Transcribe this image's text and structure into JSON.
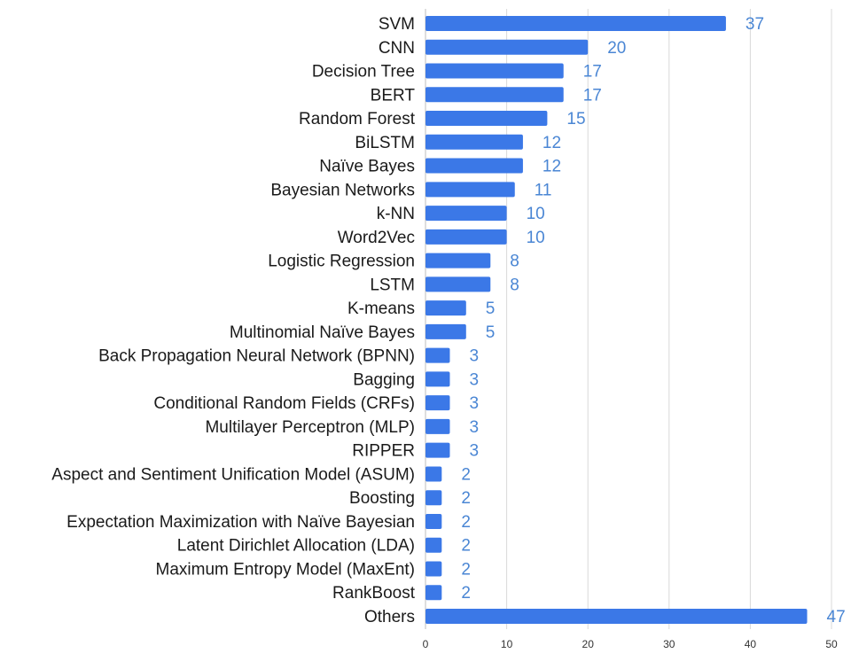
{
  "chart_data": {
    "type": "bar",
    "orientation": "horizontal",
    "categories": [
      "SVM",
      "CNN",
      "Decision Tree",
      "BERT",
      "Random Forest",
      "BiLSTM",
      "Naïve Bayes",
      "Bayesian Networks",
      "k-NN",
      "Word2Vec",
      "Logistic Regression",
      "LSTM",
      "K-means",
      "Multinomial Naïve Bayes",
      "Back Propagation Neural Network (BPNN)",
      "Bagging",
      "Conditional Random Fields (CRFs)",
      "Multilayer Perceptron (MLP)",
      "RIPPER",
      "Aspect and Sentiment Unification Model (ASUM)",
      "Boosting",
      "Expectation Maximization with Naïve Bayesian",
      "Latent Dirichlet Allocation (LDA)",
      "Maximum Entropy Model (MaxEnt)",
      "RankBoost",
      "Others"
    ],
    "values": [
      37,
      20,
      17,
      17,
      15,
      12,
      12,
      11,
      10,
      10,
      8,
      8,
      5,
      5,
      3,
      3,
      3,
      3,
      3,
      2,
      2,
      2,
      2,
      2,
      2,
      47
    ],
    "data_labels": [
      "37",
      "20",
      "17",
      "17",
      "15",
      "12",
      "12",
      "11",
      "10",
      "10",
      "8",
      "8",
      "5",
      "5",
      "3",
      "3",
      "3",
      "3",
      "3",
      "2",
      "2",
      "2",
      "2",
      "2",
      "2",
      "47"
    ],
    "x_ticks": [
      0,
      10,
      20,
      30,
      40,
      50
    ],
    "x_tick_labels": [
      "0",
      "10",
      "20",
      "30",
      "40",
      "50"
    ],
    "xlim": [
      0,
      50
    ],
    "grid": true,
    "bar_color": "#3b78e7",
    "label_color": "#4a86d4",
    "grid_color": "#d9d9d9"
  }
}
